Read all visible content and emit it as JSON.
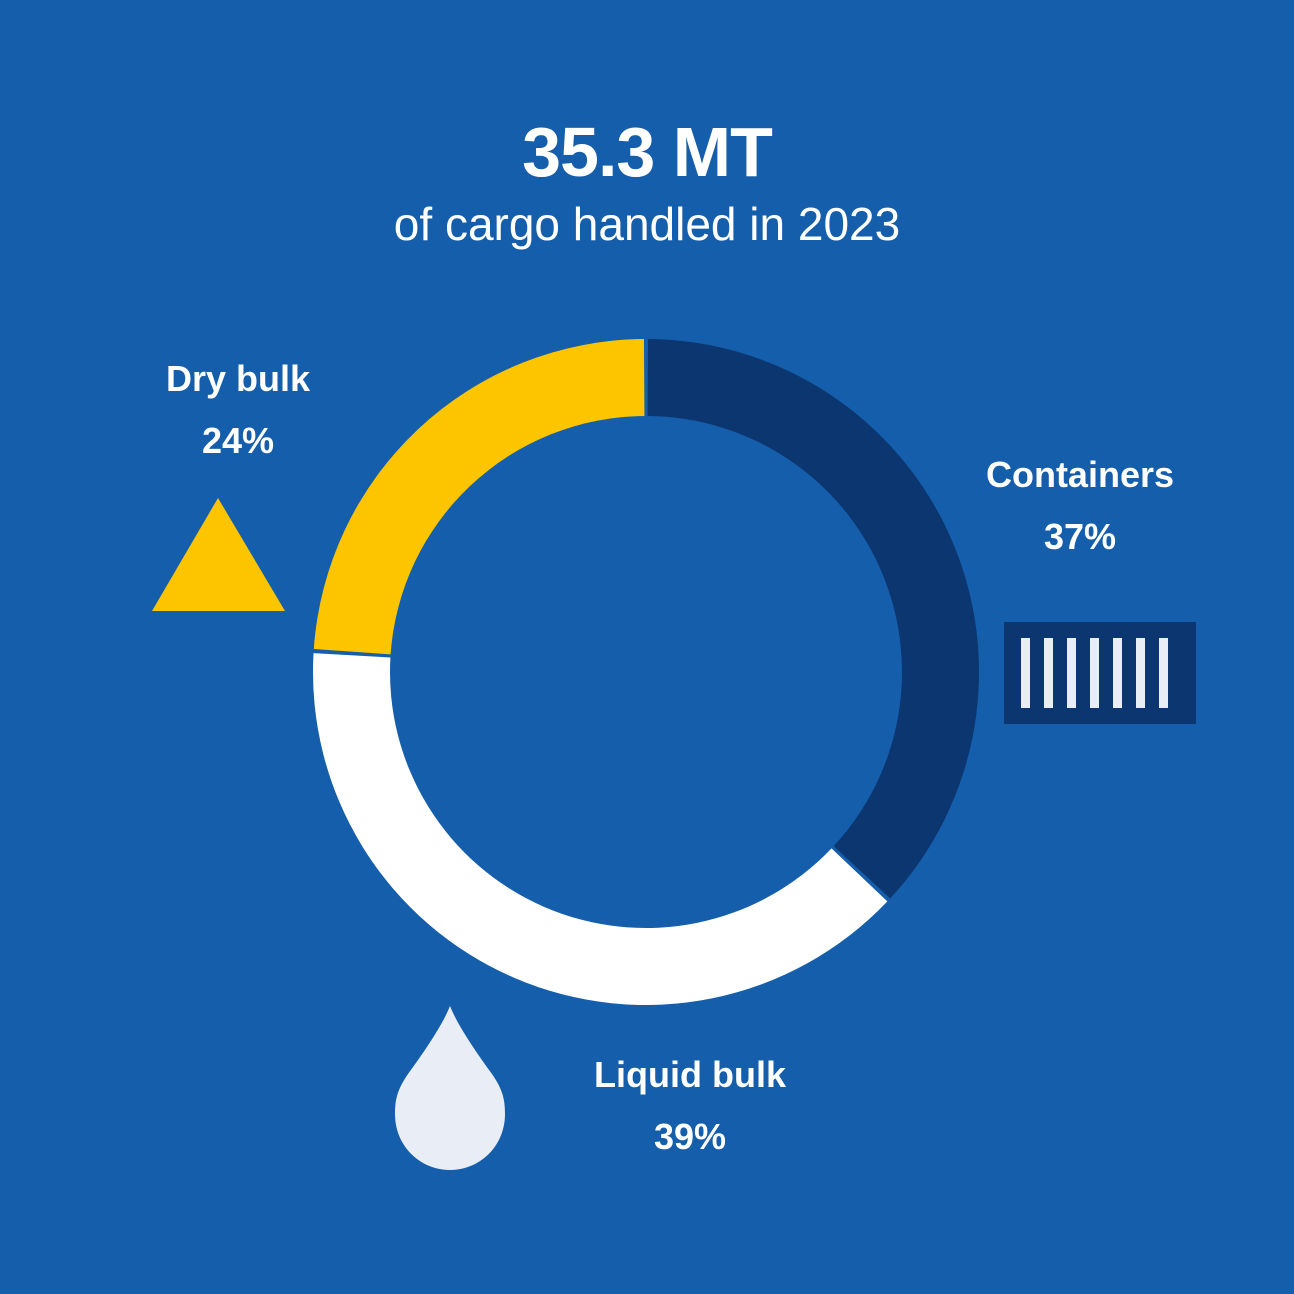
{
  "header": {
    "headline": "35.3 MT",
    "subheadline": "of cargo handled in 2023"
  },
  "chart_data": {
    "type": "pie",
    "variant": "donut",
    "title": "35.3 MT",
    "subtitle": "of cargo handled in 2023",
    "categories": [
      "Containers",
      "Liquid bulk",
      "Dry bulk"
    ],
    "values": [
      37,
      39,
      24
    ],
    "unit": "%",
    "value_labels": [
      "37%",
      "39%",
      "24%"
    ],
    "colors": [
      "#0c3670",
      "#ffffff",
      "#fdc500"
    ],
    "start_angle_deg": 0,
    "direction": "clockwise"
  },
  "colors": {
    "background": "#155eab",
    "containers": "#0c3670",
    "liquid_bulk": "#ffffff",
    "dry_bulk": "#fdc500",
    "icon_light": "#e9edf6"
  },
  "icons": {
    "containers": "shipping-container-icon",
    "liquid_bulk": "droplet-icon",
    "dry_bulk": "triangle-pile-icon"
  }
}
